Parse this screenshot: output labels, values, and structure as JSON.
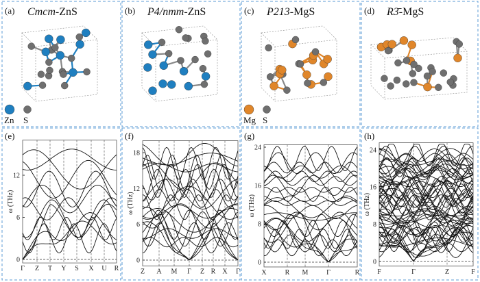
{
  "colors": {
    "frame": "#5b9bd5",
    "zn": "#1f7fc0",
    "s": "#6f6f6f",
    "mg": "#e0862a",
    "band": "#111111"
  },
  "panels": [
    {
      "tag": "(a)",
      "title_italic": "Cmcm",
      "title_rest": "-ZnS",
      "legend": [
        {
          "label": "Zn",
          "color": "#1f7fc0"
        },
        {
          "label": "S",
          "color": "#6f6f6f"
        }
      ]
    },
    {
      "tag": "(b)",
      "title_italic": "P4/nmm",
      "title_rest": "-ZnS"
    },
    {
      "tag": "(c)",
      "title_italic": "P213",
      "title_rest": "-MgS",
      "legend": [
        {
          "label": "Mg",
          "color": "#e0862a"
        },
        {
          "label": "S",
          "color": "#6f6f6f"
        }
      ]
    },
    {
      "tag": "(d)",
      "title_italic": "R3̄",
      "title_rest": "-MgS"
    }
  ],
  "chart_data": [
    {
      "tag": "(e)",
      "type": "line",
      "ylabel": "ω (THz)",
      "yticks": [
        0,
        6,
        12
      ],
      "ylim": [
        -0.5,
        17
      ],
      "kpoints": [
        "Γ",
        "Z",
        "T",
        "Y",
        "S",
        "X",
        "U",
        "R"
      ]
    },
    {
      "tag": "(f)",
      "type": "line",
      "ylabel": "ω (THz)",
      "yticks": [
        0,
        6,
        12,
        18
      ],
      "ylim": [
        -1,
        20
      ],
      "kpoints": [
        "Z",
        "A",
        "M",
        "Γ",
        "Z",
        "R",
        "X",
        "Γ"
      ]
    },
    {
      "tag": "(g)",
      "type": "line",
      "ylabel": "ω (THz)",
      "yticks": [
        0,
        8,
        16,
        24
      ],
      "ylim": [
        -1,
        24.5
      ],
      "kpoints": [
        "X",
        "R",
        "M",
        "Γ",
        "R"
      ]
    },
    {
      "tag": "(h)",
      "type": "line",
      "ylabel": "ω (THz)",
      "yticks": [
        0,
        8,
        16,
        24
      ],
      "ylim": [
        -1,
        25.5
      ],
      "kpoints": [
        "F",
        "Γ",
        "Z",
        "F"
      ]
    }
  ]
}
